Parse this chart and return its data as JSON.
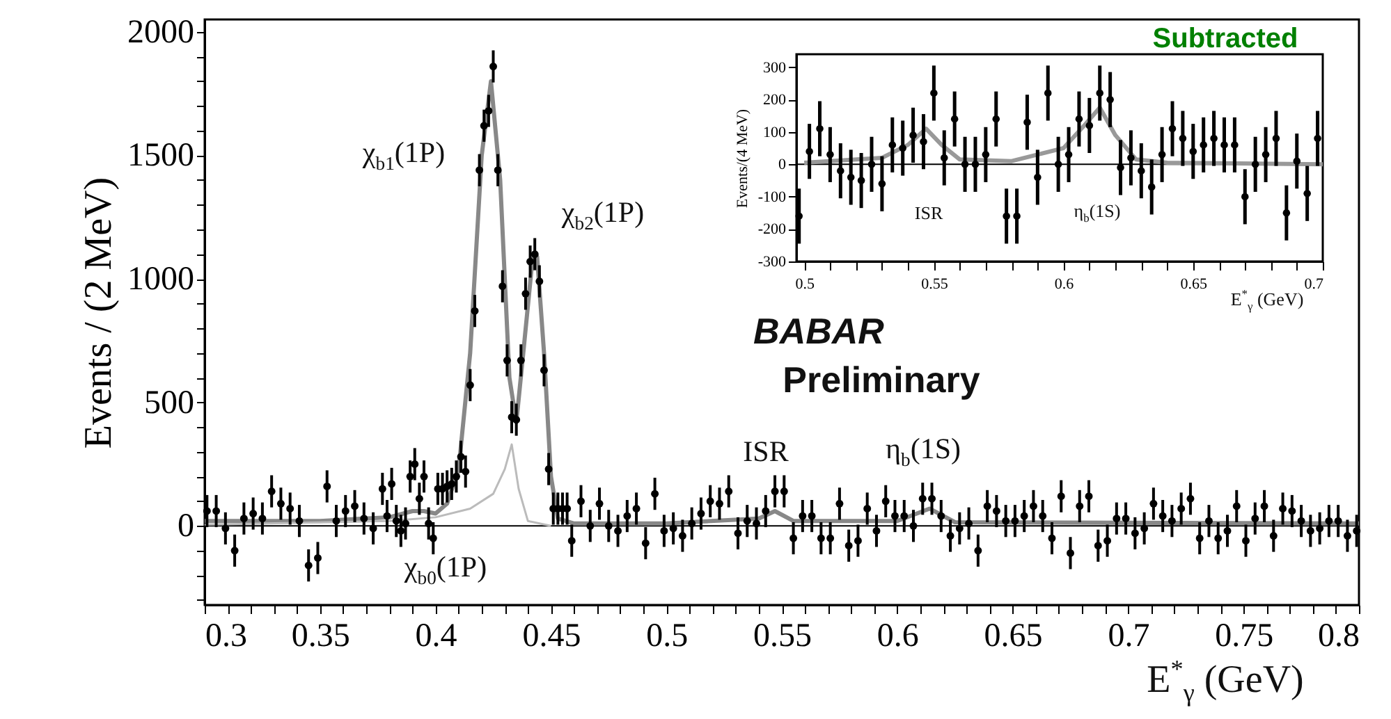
{
  "chart_data": [
    {
      "type": "scatter",
      "ylabel": "Events / (2 MeV)",
      "xlabel": "E$^{*}$$_{γ}$ (GeV)",
      "xlim": [
        0.3,
        0.8
      ],
      "ylim": [
        -320,
        2050
      ],
      "xticks": [
        0.3,
        {
          "value": 0.31,
          "label": null
        },
        {
          "value": 0.32,
          "label": null
        },
        {
          "value": 0.33,
          "label": null
        },
        {
          "value": 0.34,
          "label": null
        },
        0.35,
        {
          "value": 0.36,
          "label": null
        },
        {
          "value": 0.37,
          "label": null
        },
        {
          "value": 0.38,
          "label": null
        },
        {
          "value": 0.39,
          "label": null
        },
        0.4,
        {
          "value": 0.41,
          "label": null
        },
        {
          "value": 0.42,
          "label": null
        },
        {
          "value": 0.43,
          "label": null
        },
        {
          "value": 0.44,
          "label": null
        },
        0.45,
        {
          "value": 0.46,
          "label": null
        },
        {
          "value": 0.47,
          "label": null
        },
        {
          "value": 0.48,
          "label": null
        },
        {
          "value": 0.49,
          "label": null
        },
        0.5,
        {
          "value": 0.51,
          "label": null
        },
        {
          "value": 0.52,
          "label": null
        },
        {
          "value": 0.53,
          "label": null
        },
        {
          "value": 0.54,
          "label": null
        },
        0.55,
        {
          "value": 0.56,
          "label": null
        },
        {
          "value": 0.57,
          "label": null
        },
        {
          "value": 0.58,
          "label": null
        },
        {
          "value": 0.59,
          "label": null
        },
        0.6,
        {
          "value": 0.61,
          "label": null
        },
        {
          "value": 0.62,
          "label": null
        },
        {
          "value": 0.63,
          "label": null
        },
        {
          "value": 0.64,
          "label": null
        },
        0.65,
        {
          "value": 0.66,
          "label": null
        },
        {
          "value": 0.67,
          "label": null
        },
        {
          "value": 0.68,
          "label": null
        },
        {
          "value": 0.69,
          "label": null
        },
        0.7,
        {
          "value": 0.71,
          "label": null
        },
        {
          "value": 0.72,
          "label": null
        },
        {
          "value": 0.73,
          "label": null
        },
        {
          "value": 0.74,
          "label": null
        },
        0.75,
        {
          "value": 0.76,
          "label": null
        },
        {
          "value": 0.77,
          "label": null
        },
        {
          "value": 0.78,
          "label": null
        },
        {
          "value": 0.79,
          "label": null
        },
        0.8
      ],
      "yticks": [
        {
          "value": -300,
          "label": null
        },
        {
          "value": -200,
          "label": null
        },
        {
          "value": -100,
          "label": null
        },
        0,
        {
          "value": 100,
          "label": null
        },
        {
          "value": 200,
          "label": null
        },
        {
          "value": 300,
          "label": null
        },
        {
          "value": 400,
          "label": null
        },
        500,
        {
          "value": 600,
          "label": null
        },
        {
          "value": 700,
          "label": null
        },
        {
          "value": 800,
          "label": null
        },
        {
          "value": 900,
          "label": null
        },
        1000,
        {
          "value": 1100,
          "label": null
        },
        {
          "value": 1200,
          "label": null
        },
        {
          "value": 1300,
          "label": null
        },
        {
          "value": 1400,
          "label": null
        },
        1500,
        {
          "value": 1600,
          "label": null
        },
        {
          "value": 1700,
          "label": null
        },
        {
          "value": 1800,
          "label": null
        },
        {
          "value": 1900,
          "label": null
        },
        2000
      ],
      "ref_lines": [
        {
          "axis": "y",
          "value": 0,
          "color": "#000000"
        }
      ],
      "annotations": [
        "χ$_{b1}$(1P)",
        "χ$_{b2}$(1P)",
        "χ$_{b0}$(1P)",
        "ISR",
        "η$_{b}$(1S)",
        "Subtracted",
        "BABAR",
        "Preliminary"
      ],
      "series": [
        {
          "type": "scatter",
          "color": "#000000",
          "marker": "circle",
          "x": [
            0.301,
            0.305,
            0.309,
            0.313,
            0.317,
            0.321,
            0.325,
            0.329,
            0.333,
            0.337,
            0.341,
            0.345,
            0.349,
            0.353,
            0.357,
            0.361,
            0.365,
            0.369,
            0.373,
            0.377,
            0.379,
            0.381,
            0.383,
            0.385,
            0.387,
            0.389,
            0.391,
            0.393,
            0.395,
            0.397,
            0.399,
            0.401,
            0.403,
            0.405,
            0.407,
            0.409,
            0.411,
            0.413,
            0.415,
            0.417,
            0.419,
            0.421,
            0.423,
            0.425,
            0.427,
            0.429,
            0.431,
            0.433,
            0.435,
            0.437,
            0.439,
            0.441,
            0.443,
            0.445,
            0.447,
            0.449,
            0.451,
            0.453,
            0.455,
            0.457,
            0.459,
            0.463,
            0.467,
            0.471,
            0.475,
            0.479,
            0.483,
            0.487,
            0.491,
            0.495,
            0.499,
            0.503,
            0.507,
            0.511,
            0.515,
            0.519,
            0.523,
            0.527,
            0.531,
            0.535,
            0.539,
            0.543,
            0.547,
            0.551,
            0.555,
            0.559,
            0.563,
            0.567,
            0.571,
            0.575,
            0.579,
            0.583,
            0.587,
            0.591,
            0.595,
            0.599,
            0.603,
            0.607,
            0.611,
            0.615,
            0.619,
            0.623,
            0.627,
            0.631,
            0.635,
            0.639,
            0.643,
            0.647,
            0.651,
            0.655,
            0.659,
            0.663,
            0.667,
            0.671,
            0.675,
            0.679,
            0.683,
            0.687,
            0.691,
            0.695,
            0.699,
            0.703,
            0.707,
            0.711,
            0.715,
            0.719,
            0.723,
            0.727,
            0.731,
            0.735,
            0.739,
            0.743,
            0.747,
            0.751,
            0.755,
            0.759,
            0.763,
            0.767,
            0.771,
            0.775,
            0.779,
            0.783,
            0.787,
            0.791,
            0.795,
            0.799
          ],
          "values": [
            60,
            60,
            -10,
            -100,
            30,
            50,
            30,
            140,
            90,
            70,
            20,
            -160,
            -130,
            160,
            20,
            60,
            80,
            30,
            -10,
            150,
            40,
            170,
            20,
            -20,
            10,
            200,
            250,
            110,
            200,
            10,
            -50,
            150,
            150,
            160,
            170,
            200,
            280,
            220,
            570,
            870,
            1440,
            1620,
            1680,
            1860,
            1440,
            970,
            670,
            440,
            430,
            670,
            940,
            1070,
            1100,
            990,
            630,
            230,
            70,
            70,
            70,
            70,
            -60,
            100,
            0,
            90,
            0,
            -20,
            40,
            70,
            -70,
            130,
            -20,
            -10,
            -40,
            10,
            50,
            100,
            90,
            140,
            -30,
            20,
            10,
            60,
            140,
            140,
            -50,
            40,
            40,
            -50,
            -50,
            90,
            -80,
            -60,
            70,
            -20,
            100,
            40,
            40,
            0,
            110,
            110,
            40,
            -40,
            -10,
            10,
            -100,
            80,
            60,
            20,
            20,
            40,
            80,
            40,
            -50,
            120,
            -110,
            80,
            120,
            -80,
            -60,
            30,
            30,
            -30,
            -10,
            90,
            40,
            20,
            70,
            110,
            -50,
            20,
            -50,
            -20,
            80,
            -60,
            30,
            80,
            -40,
            70,
            60,
            20,
            -20,
            -10,
            20,
            20,
            -40,
            -20
          ],
          "errors": [
            65,
            65,
            65,
            65,
            65,
            65,
            65,
            65,
            65,
            65,
            65,
            65,
            65,
            65,
            65,
            65,
            65,
            65,
            65,
            65,
            65,
            65,
            65,
            65,
            65,
            65,
            65,
            65,
            65,
            65,
            65,
            65,
            65,
            65,
            65,
            65,
            65,
            65,
            65,
            65,
            65,
            65,
            65,
            65,
            65,
            65,
            65,
            65,
            65,
            65,
            65,
            65,
            65,
            65,
            65,
            65,
            65,
            65,
            65,
            65,
            65,
            65,
            65,
            65,
            65,
            65,
            65,
            65,
            65,
            65,
            65,
            65,
            65,
            65,
            65,
            65,
            65,
            65,
            65,
            65,
            65,
            65,
            65,
            65,
            65,
            65,
            65,
            65,
            65,
            65,
            65,
            65,
            65,
            65,
            65,
            65,
            65,
            65,
            65,
            65,
            65,
            65,
            65,
            65,
            65,
            65,
            65,
            65,
            65,
            65,
            65,
            65,
            65,
            65,
            65,
            65,
            65,
            65,
            65,
            65,
            65,
            65,
            65,
            65,
            65,
            65,
            65,
            65,
            65,
            65,
            65,
            65,
            65,
            65,
            65,
            65,
            65,
            65,
            65,
            65,
            65,
            65,
            65,
            65,
            65,
            65
          ]
        },
        {
          "type": "line",
          "color": "#888888",
          "x": [
            0.3,
            0.35,
            0.38,
            0.39,
            0.395,
            0.4,
            0.405,
            0.41,
            0.415,
            0.42,
            0.424,
            0.428,
            0.432,
            0.435,
            0.438,
            0.442,
            0.444,
            0.447,
            0.45,
            0.453,
            0.46,
            0.5,
            0.54,
            0.547,
            0.555,
            0.6,
            0.614,
            0.625,
            0.8
          ],
          "values": [
            20,
            20,
            35,
            60,
            60,
            50,
            90,
            230,
            700,
            1500,
            1800,
            1400,
            600,
            420,
            700,
            1080,
            1090,
            700,
            200,
            30,
            10,
            10,
            30,
            60,
            20,
            20,
            70,
            15,
            10
          ]
        },
        {
          "type": "line",
          "color": "#bbbbbb",
          "x": [
            0.3,
            0.38,
            0.4,
            0.415,
            0.425,
            0.43,
            0.433,
            0.436,
            0.44,
            0.45
          ],
          "values": [
            5,
            20,
            35,
            70,
            130,
            230,
            330,
            150,
            20,
            0
          ]
        }
      ]
    },
    {
      "type": "scatter",
      "ylabel": "Events/(4 MeV)",
      "xlabel": "E$^{*}$$_{γ}$ (GeV)",
      "xlim": [
        0.497,
        0.7
      ],
      "ylim": [
        -300,
        340
      ],
      "xticks": [
        0.5,
        {
          "value": 0.51,
          "label": null
        },
        {
          "value": 0.52,
          "label": null
        },
        {
          "value": 0.53,
          "label": null
        },
        {
          "value": 0.54,
          "label": null
        },
        0.55,
        {
          "value": 0.56,
          "label": null
        },
        {
          "value": 0.57,
          "label": null
        },
        {
          "value": 0.58,
          "label": null
        },
        {
          "value": 0.59,
          "label": null
        },
        0.6,
        {
          "value": 0.61,
          "label": null
        },
        {
          "value": 0.62,
          "label": null
        },
        {
          "value": 0.63,
          "label": null
        },
        {
          "value": 0.64,
          "label": null
        },
        0.65,
        {
          "value": 0.66,
          "label": null
        },
        {
          "value": 0.67,
          "label": null
        },
        {
          "value": 0.68,
          "label": null
        },
        {
          "value": 0.69,
          "label": null
        },
        0.7
      ],
      "yticks": [
        -300,
        -200,
        -100,
        0,
        100,
        200,
        300
      ],
      "ref_lines": [
        {
          "axis": "y",
          "value": 0,
          "color": "#000000"
        }
      ],
      "annotations": [
        "ISR",
        "η$_{b}$(1S)"
      ],
      "series": [
        {
          "type": "scatter",
          "color": "#000000",
          "marker": "circle",
          "x": [
            0.498,
            0.502,
            0.506,
            0.51,
            0.514,
            0.518,
            0.522,
            0.526,
            0.53,
            0.534,
            0.538,
            0.542,
            0.546,
            0.55,
            0.554,
            0.558,
            0.562,
            0.566,
            0.57,
            0.574,
            0.578,
            0.582,
            0.586,
            0.59,
            0.594,
            0.598,
            0.602,
            0.606,
            0.61,
            0.614,
            0.618,
            0.622,
            0.626,
            0.63,
            0.634,
            0.638,
            0.642,
            0.646,
            0.65,
            0.654,
            0.658,
            0.662,
            0.666,
            0.67,
            0.674,
            0.678,
            0.682,
            0.686,
            0.69,
            0.694,
            0.698
          ],
          "values": [
            -160,
            40,
            110,
            30,
            -20,
            -40,
            -50,
            0,
            -60,
            60,
            50,
            90,
            70,
            220,
            20,
            140,
            0,
            0,
            30,
            140,
            -160,
            -160,
            130,
            -40,
            220,
            0,
            30,
            140,
            120,
            220,
            200,
            -10,
            20,
            -20,
            -70,
            30,
            110,
            80,
            40,
            60,
            80,
            60,
            60,
            -100,
            0,
            30,
            80,
            -150,
            10,
            -90,
            80
          ],
          "errors": [
            85,
            85,
            85,
            85,
            85,
            85,
            85,
            85,
            85,
            85,
            85,
            85,
            85,
            85,
            85,
            85,
            85,
            85,
            85,
            85,
            85,
            85,
            85,
            85,
            85,
            85,
            85,
            85,
            85,
            85,
            85,
            85,
            85,
            85,
            85,
            85,
            85,
            85,
            85,
            85,
            85,
            85,
            85,
            85,
            85,
            85,
            85,
            85,
            85,
            85,
            85
          ]
        },
        {
          "type": "line",
          "color": "#999999",
          "x": [
            0.5,
            0.53,
            0.54,
            0.547,
            0.553,
            0.56,
            0.58,
            0.6,
            0.608,
            0.614,
            0.62,
            0.628,
            0.64,
            0.7
          ],
          "values": [
            5,
            20,
            60,
            110,
            60,
            15,
            10,
            50,
            120,
            175,
            90,
            15,
            5,
            0
          ]
        }
      ]
    }
  ]
}
